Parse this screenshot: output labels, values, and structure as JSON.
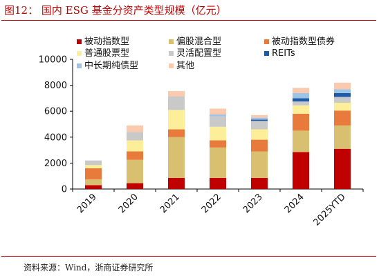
{
  "figure": {
    "title": "图12： 国内 ESG 基金分资产类型规模（亿元）",
    "source": "资料来源：Wind，浙商证券研究所"
  },
  "chart_data": {
    "type": "bar",
    "stacked": true,
    "categories": [
      "2019",
      "2020",
      "2021",
      "2022",
      "2023",
      "2024",
      "2025YTD"
    ],
    "ylim": [
      0,
      10000
    ],
    "yticks": [
      0,
      2000,
      4000,
      6000,
      8000,
      10000
    ],
    "grid": false,
    "legend_position": "top",
    "series": [
      {
        "name": "被动指数型",
        "color": "#c00000",
        "values": [
          300,
          450,
          850,
          850,
          850,
          2850,
          3100
        ]
      },
      {
        "name": "偏股混合型",
        "color": "#d8c070",
        "values": [
          450,
          1800,
          3150,
          2350,
          2050,
          1650,
          1800
        ]
      },
      {
        "name": "被动指数型债券",
        "color": "#e87a3c",
        "values": [
          850,
          650,
          600,
          550,
          900,
          1300,
          1150
        ]
      },
      {
        "name": "普通股票型",
        "color": "#fdef9a",
        "values": [
          250,
          850,
          1500,
          1050,
          800,
          650,
          600
        ]
      },
      {
        "name": "灵活配置型",
        "color": "#c9c9c9",
        "values": [
          350,
          650,
          1050,
          800,
          650,
          300,
          450
        ]
      },
      {
        "name": "REITs",
        "color": "#1f5aa8",
        "values": [
          0,
          0,
          0,
          0,
          100,
          250,
          300
        ]
      },
      {
        "name": "中长期纯债型",
        "color": "#9dc3e6",
        "values": [
          0,
          0,
          0,
          150,
          150,
          400,
          300
        ]
      },
      {
        "name": "其他",
        "color": "#fbc9ad",
        "values": [
          0,
          500,
          400,
          450,
          200,
          400,
          500
        ]
      }
    ]
  }
}
